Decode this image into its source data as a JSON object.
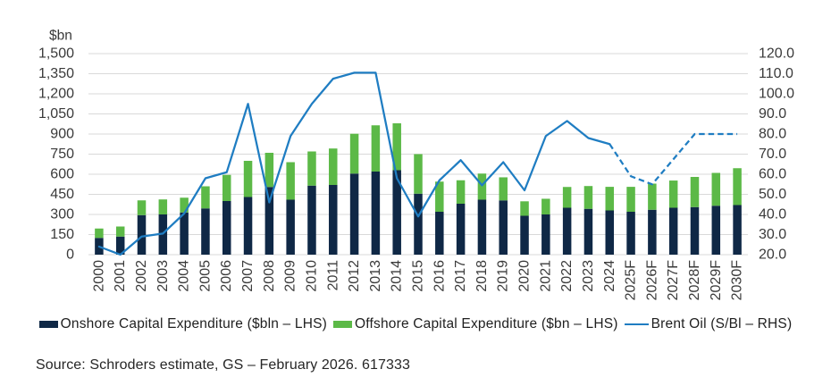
{
  "chart_data": {
    "type": "combo_stacked_bar_line",
    "categories": [
      "2000",
      "2001",
      "2002",
      "2003",
      "2004",
      "2005",
      "2006",
      "2007",
      "2008",
      "2009",
      "2010",
      "2011",
      "2012",
      "2013",
      "2014",
      "2015",
      "2016",
      "2017",
      "2018",
      "2019",
      "2020",
      "2021",
      "2022",
      "2023",
      "2024",
      "2025F",
      "2026F",
      "2027F",
      "2028F",
      "2029F",
      "2030F"
    ],
    "series": [
      {
        "name": "Onshore Capital Expenditure ($bln - LHS)",
        "legend_label": "Onshore Capital Expenditure ($bln – LHS)",
        "type": "bar",
        "stack": true,
        "axis": "left",
        "color": "#0f2846",
        "values": [
          125,
          135,
          295,
          300,
          315,
          345,
          400,
          430,
          505,
          410,
          515,
          520,
          605,
          620,
          630,
          455,
          320,
          380,
          410,
          405,
          290,
          300,
          350,
          342,
          330,
          320,
          335,
          350,
          355,
          365,
          370
        ]
      },
      {
        "name": "Offshore Capital Expenditure ($bn - LHS)",
        "legend_label": "Offshore Capital Expenditure ($bn – LHS)",
        "type": "bar",
        "stack": true,
        "axis": "left",
        "color": "#5cb947",
        "values": [
          70,
          75,
          110,
          112,
          110,
          165,
          195,
          270,
          255,
          280,
          255,
          272,
          297,
          345,
          350,
          295,
          225,
          175,
          195,
          172,
          108,
          117,
          155,
          170,
          176,
          186,
          195,
          203,
          225,
          245,
          275
        ]
      },
      {
        "name": "Brent Oil (S/Bl - RHS)",
        "legend_label": "Brent Oil (S/Bl – RHS)",
        "type": "line",
        "axis": "right",
        "color": "#1f7dc2",
        "values": [
          24,
          20,
          29,
          30.5,
          40.5,
          58,
          61,
          95,
          46,
          79,
          95,
          107.5,
          110.5,
          110.5,
          58,
          39,
          57,
          67,
          54.5,
          66,
          52,
          79,
          86.5,
          78,
          75,
          59,
          55,
          67.5,
          80,
          80,
          80
        ],
        "solid_through_index": 24,
        "dashed_from_index": 24,
        "dash_note": "solid 2000-2024, dashed forecast 2024-2030F"
      }
    ],
    "left_axis": {
      "unit": "$bn",
      "min": 0,
      "max": 1500,
      "tick_labels": [
        "1,500",
        "1,350",
        "1,200",
        "1,050",
        "900",
        "750",
        "600",
        "450",
        "300",
        "150",
        "0"
      ],
      "tick_values": [
        1500,
        1350,
        1200,
        1050,
        900,
        750,
        600,
        450,
        300,
        150,
        0
      ]
    },
    "right_axis": {
      "min": 20,
      "max": 120,
      "tick_labels": [
        "120.0",
        "110.0",
        "100.0",
        "90.0",
        "80.0",
        "70.0",
        "60.0",
        "50.0",
        "40.0",
        "30.0",
        "20.0"
      ],
      "tick_values": [
        120,
        110,
        100,
        90,
        80,
        70,
        60,
        50,
        40,
        30,
        20
      ]
    },
    "grid": "horizontal",
    "gridline_color": "#d9d9d9",
    "legend_position": "bottom",
    "title": ""
  },
  "legend": {
    "onshore_label": "Onshore Capital Expenditure ($bln – LHS)",
    "offshore_label": "Offshore Capital Expenditure ($bn – LHS)",
    "brent_label": "Brent Oil (S/Bl – RHS)"
  },
  "footer": {
    "source": "Source: Schroders estimate, GS – February 2026. 617333"
  },
  "colors": {
    "onshore": "#0f2846",
    "offshore": "#5cb947",
    "brent_line": "#1f7dc2",
    "gridline": "#d9d9d9",
    "axis_text": "#3a3a3a",
    "background": "#ffffff"
  }
}
